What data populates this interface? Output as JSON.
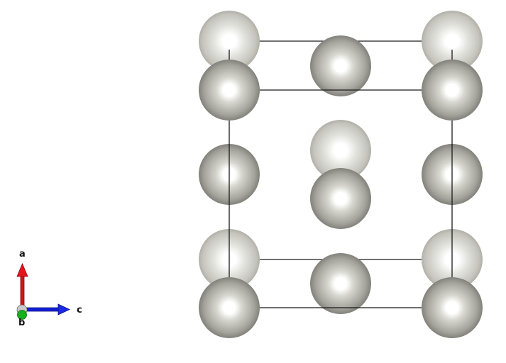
{
  "axes": {
    "a": {
      "label": "a",
      "color": "#e8141b"
    },
    "b": {
      "label": "b",
      "color": "#17b01f"
    },
    "c": {
      "label": "c",
      "color": "#1420d6"
    }
  },
  "atom_color": "#9c9c96",
  "cell_edge_color": "#1a1a1a",
  "background": "#ffffff"
}
